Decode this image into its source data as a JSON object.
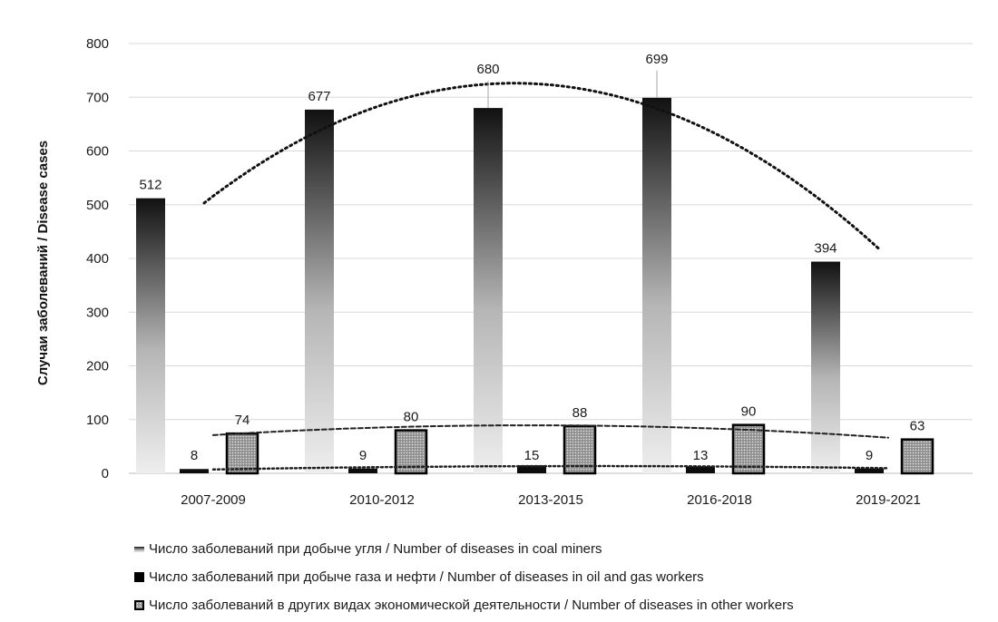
{
  "chart_data": {
    "type": "bar",
    "ylabel": "Случаи заболеваний / Disease cases",
    "ylim": [
      0,
      800
    ],
    "yticks": [
      0,
      100,
      200,
      300,
      400,
      500,
      600,
      700,
      800
    ],
    "grid": true,
    "legend_position": "bottom-left",
    "categories": [
      "2007-2009",
      "2010-2012",
      "2013-2015",
      "2016-2018",
      "2019-2021"
    ],
    "series": [
      {
        "name": "Число заболеваний при добыче угля / Number of diseases in coal miners",
        "values": [
          512,
          677,
          680,
          699,
          394
        ]
      },
      {
        "name": "Число заболеваний при добыче газа и нефти / Number of diseases in oil and gas workers",
        "values": [
          8,
          9,
          15,
          13,
          9
        ]
      },
      {
        "name": "Число заболеваний в других видах экономической деятельности / Number of diseases in other workers",
        "values": [
          74,
          80,
          88,
          90,
          63
        ]
      }
    ],
    "trendlines": "dotted polynomial trend per series"
  }
}
